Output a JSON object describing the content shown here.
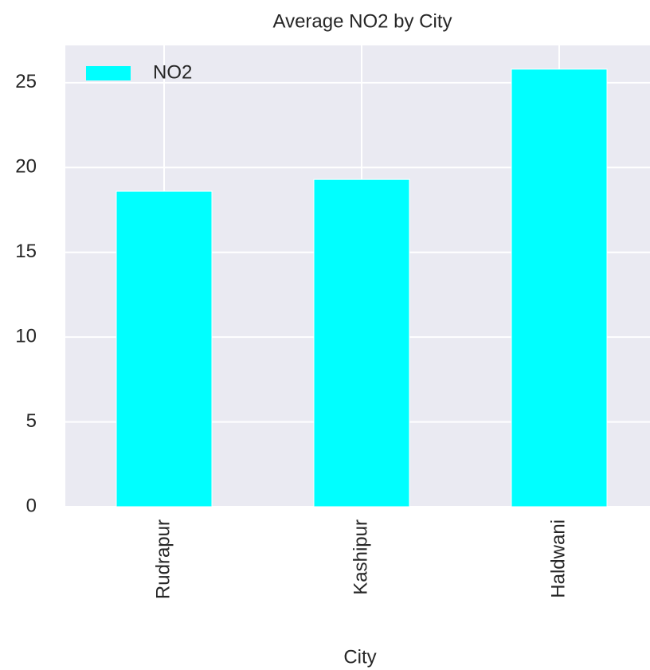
{
  "chart_data": {
    "type": "bar",
    "title": "Average NO2 by City",
    "x_label": "City",
    "categories": [
      "Rudrapur",
      "Kashipur",
      "Haldwani"
    ],
    "series": [
      {
        "name": "NO2",
        "color": "#00ffff",
        "values": [
          18.6,
          19.3,
          25.8
        ]
      }
    ],
    "ylim": [
      0,
      27.2
    ],
    "yticks": [
      0,
      5,
      10,
      15,
      20,
      25
    ],
    "grid": true,
    "legend": "upper left"
  }
}
